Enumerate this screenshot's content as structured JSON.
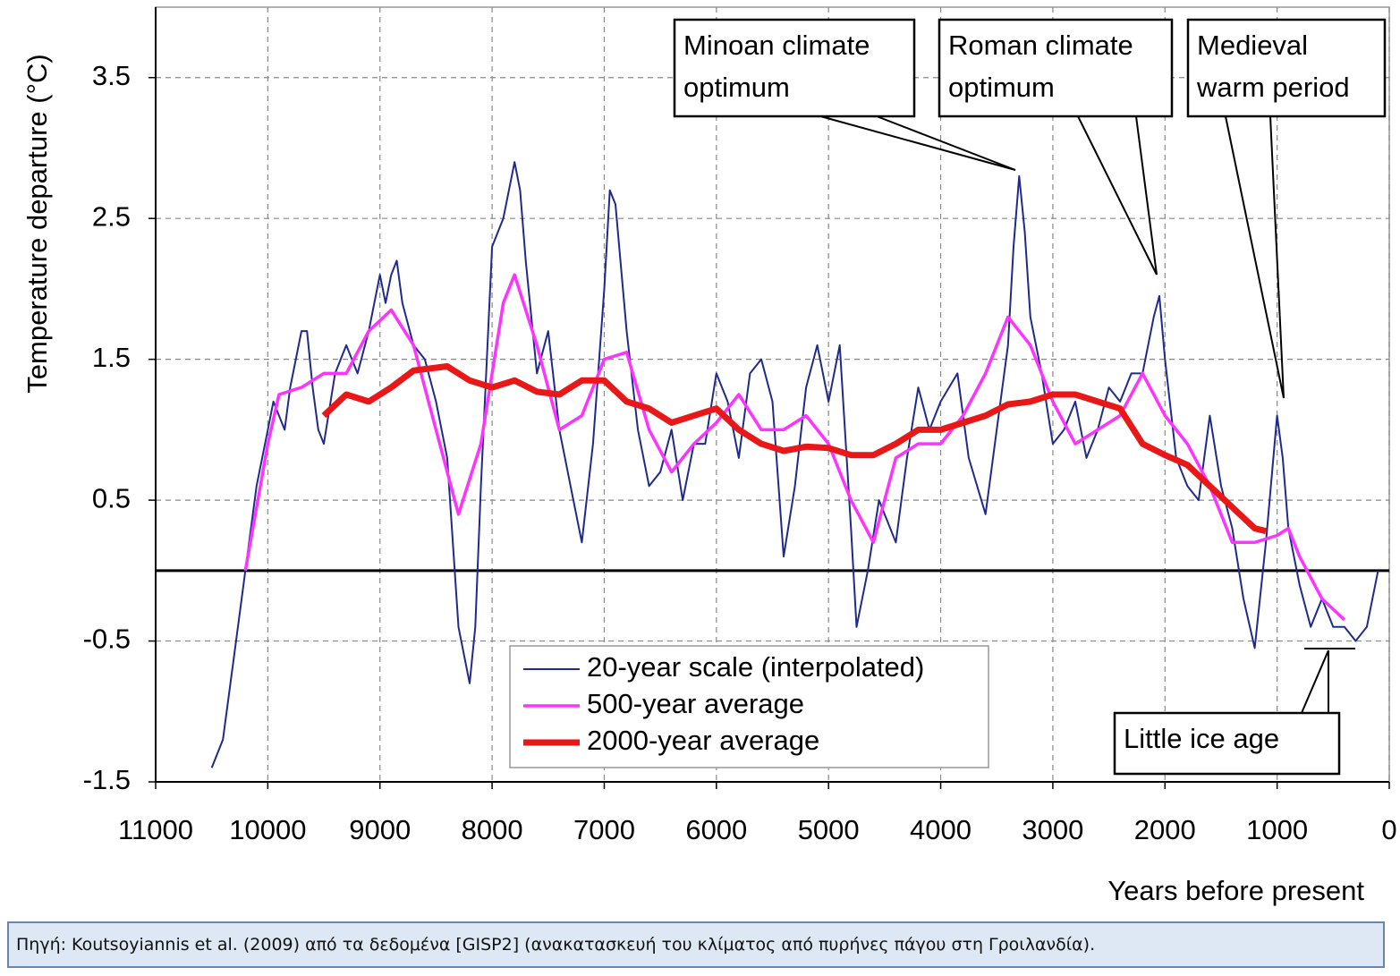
{
  "chart_data": {
    "type": "line",
    "y_label": "Temperature departure (°C)",
    "x_label": "Years before present",
    "xlim": [
      11000,
      0
    ],
    "xticks": [
      11000,
      10000,
      9000,
      8000,
      7000,
      6000,
      5000,
      4000,
      3000,
      2000,
      1000,
      0
    ],
    "ylim": [
      -1.5,
      4.0
    ],
    "yticks": [
      -1.5,
      -0.5,
      0.5,
      1.5,
      2.5,
      3.5
    ],
    "grid": true,
    "hline": 0,
    "series": [
      {
        "name": "20-year scale (interpolated)",
        "color": "#1f2a8a",
        "x": [
          10500,
          10400,
          10300,
          10200,
          10100,
          10000,
          9950,
          9900,
          9850,
          9800,
          9700,
          9650,
          9600,
          9550,
          9500,
          9400,
          9300,
          9200,
          9100,
          9000,
          8950,
          8900,
          8850,
          8800,
          8700,
          8600,
          8500,
          8400,
          8300,
          8200,
          8150,
          8100,
          8000,
          7900,
          7800,
          7750,
          7700,
          7600,
          7500,
          7400,
          7300,
          7200,
          7100,
          7000,
          6950,
          6900,
          6800,
          6700,
          6600,
          6500,
          6400,
          6300,
          6200,
          6100,
          6000,
          5900,
          5800,
          5700,
          5600,
          5500,
          5400,
          5300,
          5200,
          5100,
          5000,
          4900,
          4800,
          4750,
          4650,
          4550,
          4400,
          4300,
          4200,
          4100,
          4000,
          3850,
          3750,
          3600,
          3500,
          3400,
          3350,
          3300,
          3250,
          3200,
          3100,
          3000,
          2900,
          2800,
          2700,
          2600,
          2500,
          2400,
          2300,
          2200,
          2100,
          2050,
          2000,
          1900,
          1800,
          1700,
          1600,
          1500,
          1400,
          1300,
          1200,
          1100,
          1000,
          950,
          900,
          800,
          700,
          600,
          500,
          400,
          300,
          200,
          100
        ],
        "values": [
          -1.4,
          -1.2,
          -0.6,
          0.0,
          0.6,
          1.0,
          1.2,
          1.1,
          1.0,
          1.3,
          1.7,
          1.7,
          1.3,
          1.0,
          0.9,
          1.4,
          1.6,
          1.4,
          1.7,
          2.1,
          1.9,
          2.1,
          2.2,
          1.9,
          1.6,
          1.5,
          1.2,
          0.8,
          -0.4,
          -0.8,
          -0.4,
          0.6,
          2.3,
          2.5,
          2.9,
          2.7,
          2.2,
          1.4,
          1.7,
          1.0,
          0.6,
          0.2,
          0.9,
          2.0,
          2.7,
          2.6,
          1.7,
          1.0,
          0.6,
          0.7,
          1.0,
          0.5,
          0.9,
          0.9,
          1.4,
          1.2,
          0.8,
          1.4,
          1.5,
          1.2,
          0.1,
          0.6,
          1.3,
          1.6,
          1.2,
          1.6,
          0.3,
          -0.4,
          0.0,
          0.5,
          0.2,
          0.8,
          1.3,
          1.0,
          1.2,
          1.4,
          0.8,
          0.4,
          1.0,
          1.6,
          2.3,
          2.8,
          2.4,
          1.8,
          1.4,
          0.9,
          1.0,
          1.2,
          0.8,
          1.0,
          1.3,
          1.2,
          1.4,
          1.4,
          1.8,
          1.95,
          1.5,
          0.8,
          0.6,
          0.5,
          1.1,
          0.6,
          0.3,
          -0.2,
          -0.55,
          0.2,
          1.1,
          0.8,
          0.3,
          -0.1,
          -0.4,
          -0.2,
          -0.4,
          -0.4,
          -0.5,
          -0.4,
          0.0
        ]
      },
      {
        "name": "500-year average",
        "color": "#ff33ff",
        "x": [
          10200,
          10000,
          9900,
          9700,
          9500,
          9300,
          9100,
          8900,
          8700,
          8500,
          8300,
          8100,
          7900,
          7800,
          7600,
          7400,
          7200,
          7000,
          6800,
          6600,
          6400,
          6200,
          6000,
          5800,
          5600,
          5400,
          5200,
          5000,
          4800,
          4600,
          4400,
          4200,
          4000,
          3800,
          3600,
          3400,
          3200,
          3000,
          2800,
          2600,
          2400,
          2200,
          2000,
          1800,
          1600,
          1400,
          1200,
          1000,
          900,
          800,
          600,
          400
        ],
        "values": [
          0.0,
          0.9,
          1.25,
          1.3,
          1.4,
          1.4,
          1.7,
          1.85,
          1.6,
          1.0,
          0.4,
          0.9,
          1.9,
          2.1,
          1.6,
          1.0,
          1.1,
          1.5,
          1.55,
          1.0,
          0.7,
          0.9,
          1.05,
          1.25,
          1.0,
          1.0,
          1.1,
          0.9,
          0.5,
          0.2,
          0.8,
          0.9,
          0.9,
          1.1,
          1.4,
          1.8,
          1.6,
          1.2,
          0.9,
          1.0,
          1.1,
          1.4,
          1.1,
          0.9,
          0.6,
          0.2,
          0.2,
          0.25,
          0.3,
          0.1,
          -0.2,
          -0.35
        ]
      },
      {
        "name": "2000-year average",
        "color": "#e81818",
        "x": [
          9500,
          9300,
          9100,
          8900,
          8700,
          8400,
          8200,
          8000,
          7800,
          7600,
          7400,
          7200,
          7000,
          6800,
          6600,
          6400,
          6200,
          6000,
          5800,
          5600,
          5400,
          5200,
          5000,
          4800,
          4600,
          4400,
          4200,
          4000,
          3800,
          3600,
          3400,
          3200,
          3000,
          2800,
          2600,
          2400,
          2200,
          2000,
          1800,
          1600,
          1400,
          1200,
          1100
        ],
        "values": [
          1.1,
          1.25,
          1.2,
          1.3,
          1.42,
          1.45,
          1.35,
          1.3,
          1.35,
          1.27,
          1.25,
          1.35,
          1.35,
          1.2,
          1.15,
          1.05,
          1.1,
          1.15,
          1.0,
          0.9,
          0.85,
          0.88,
          0.87,
          0.82,
          0.82,
          0.9,
          1.0,
          1.0,
          1.05,
          1.1,
          1.18,
          1.2,
          1.25,
          1.25,
          1.2,
          1.15,
          0.9,
          0.82,
          0.75,
          0.6,
          0.45,
          0.3,
          0.28
        ]
      }
    ],
    "annotations": [
      {
        "lines": [
          "Minoan climate",
          "optimum"
        ]
      },
      {
        "lines": [
          "Roman climate",
          "optimum"
        ]
      },
      {
        "lines": [
          "Medieval",
          "warm period"
        ]
      },
      {
        "lines": [
          "Little ice age"
        ]
      }
    ]
  },
  "footer": "Πηγή: Koutsoyiannis et al. (2009) από τα δεδομένα [GISP2] (ανακατασκευή του κλίματος από πυρήνες πάγου στη Γροιλανδία)."
}
